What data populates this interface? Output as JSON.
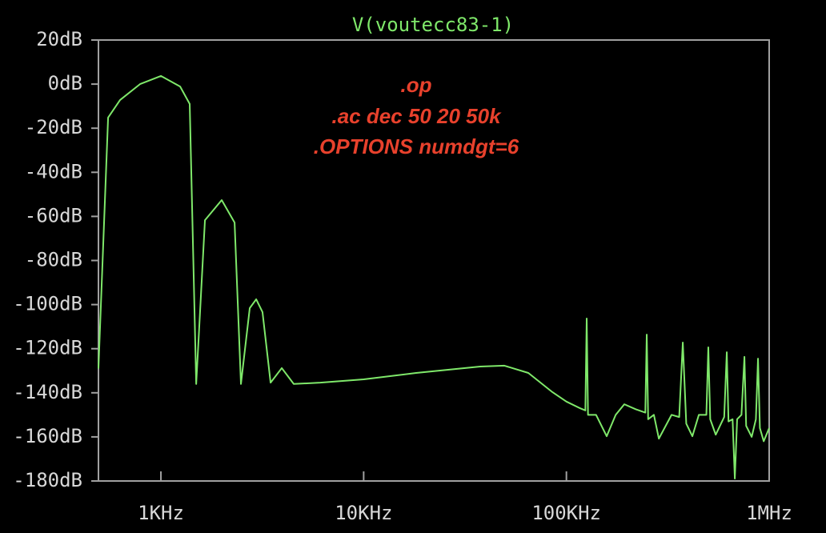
{
  "chart_data": {
    "type": "line",
    "title": "V(voutecc83-1)",
    "color": "#7fe86a",
    "log_x": true,
    "annotations": [
      ".op",
      ".ac dec 50 20 50k",
      ".OPTIONS numdgt=6"
    ],
    "x": [
      492,
      549,
      629,
      789,
      1000,
      1244,
      1387,
      1493,
      1649,
      1995,
      2309,
      2482,
      2743,
      2951,
      3170,
      3475,
      3946,
      4520,
      6110,
      10000,
      18150,
      37580,
      49430,
      64900,
      85300,
      100000,
      116700,
      124000,
      125900,
      127800,
      140000,
      158000,
      175000,
      193000,
      220000,
      245000,
      249000,
      253000,
      270000,
      285700,
      330000,
      360000,
      375000,
      390000,
      418000,
      450000,
      490000,
      501000,
      512000,
      545000,
      600000,
      618000,
      630000,
      660000,
      677000,
      695000,
      730000,
      755000,
      770000,
      820000,
      860000,
      881000,
      900000,
      940000,
      1000000
    ],
    "values": [
      -129,
      -15.2,
      -7.2,
      0,
      3.7,
      -1.1,
      -9,
      -136,
      -61.7,
      -52.6,
      -62.8,
      -136,
      -101.6,
      -97.6,
      -103.4,
      -135.4,
      -128.8,
      -136,
      -135.4,
      -133.9,
      -131,
      -128.1,
      -127.7,
      -131,
      -139.7,
      -144,
      -147,
      -148,
      -106.3,
      -150,
      -150,
      -159.7,
      -150,
      -145.2,
      -147.5,
      -149,
      -113.6,
      -152,
      -150,
      -160.8,
      -150,
      -151,
      -117.2,
      -154,
      -159.7,
      -150,
      -150,
      -119.4,
      -152,
      -159,
      -151,
      -121.6,
      -153,
      -152,
      -178.9,
      -152,
      -150,
      -123.7,
      -155,
      -160,
      -152,
      -124.5,
      -156,
      -162,
      -156
    ],
    "xlim": [
      492,
      1000000
    ],
    "ylim": [
      -180,
      20
    ],
    "xticks": [
      {
        "value": 1000,
        "label": "1KHz"
      },
      {
        "value": 10000,
        "label": "10KHz"
      },
      {
        "value": 100000,
        "label": "100KHz"
      },
      {
        "value": 1000000,
        "label": "1MHz"
      }
    ],
    "yticks": [
      {
        "value": 20,
        "label": "20dB"
      },
      {
        "value": 0,
        "label": "0dB"
      },
      {
        "value": -20,
        "label": "-20dB"
      },
      {
        "value": -40,
        "label": "-40dB"
      },
      {
        "value": -60,
        "label": "-60dB"
      },
      {
        "value": -80,
        "label": "-80dB"
      },
      {
        "value": -100,
        "label": "-100dB"
      },
      {
        "value": -120,
        "label": "-120dB"
      },
      {
        "value": -140,
        "label": "-140dB"
      },
      {
        "value": -160,
        "label": "-160dB"
      },
      {
        "value": -180,
        "label": "-180dB"
      }
    ],
    "grid": false
  }
}
